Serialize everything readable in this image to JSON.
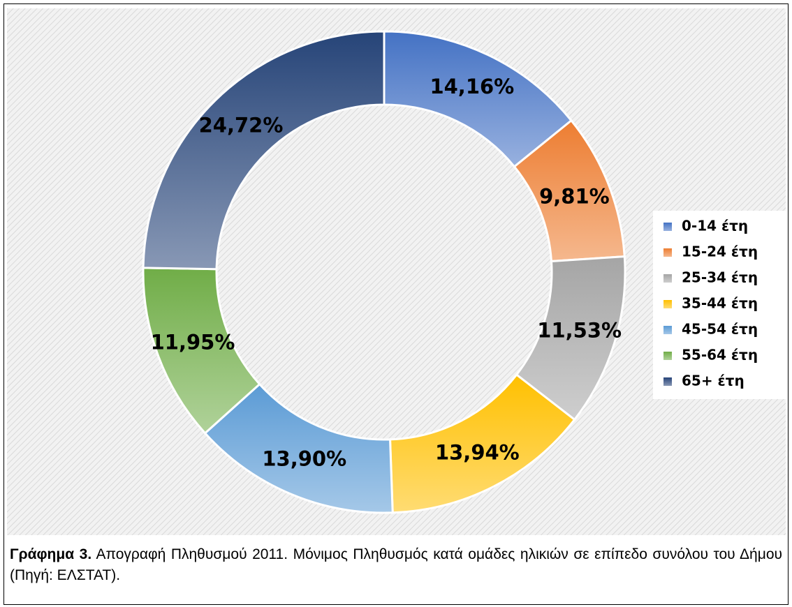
{
  "chart_data": {
    "type": "donut",
    "categories": [
      "0-14 έτη",
      "15-24 έτη",
      "25-34 έτη",
      "35-44 έτη",
      "45-54 έτη",
      "55-64 έτη",
      "65+ έτη"
    ],
    "values": [
      14.16,
      9.81,
      11.53,
      13.94,
      13.9,
      11.95,
      24.72
    ],
    "value_labels": [
      "14,16%",
      "9,81%",
      "11,53%",
      "13,94%",
      "13,90%",
      "11,95%",
      "24,72%"
    ],
    "colors": [
      "#4472c4",
      "#ed7d31",
      "#a5a5a5",
      "#ffc000",
      "#5b9bd5",
      "#70ad47",
      "#264478"
    ],
    "legend": "right"
  },
  "caption": {
    "label": "Γράφημα 3.",
    "text": "Απογραφή Πληθυσμού 2011. Μόνιμος Πληθυσμός κατά ομάδες ηλικιών σε επίπεδο συνόλου του Δήμου (Πηγή: ΕΛΣΤΑΤ)."
  }
}
